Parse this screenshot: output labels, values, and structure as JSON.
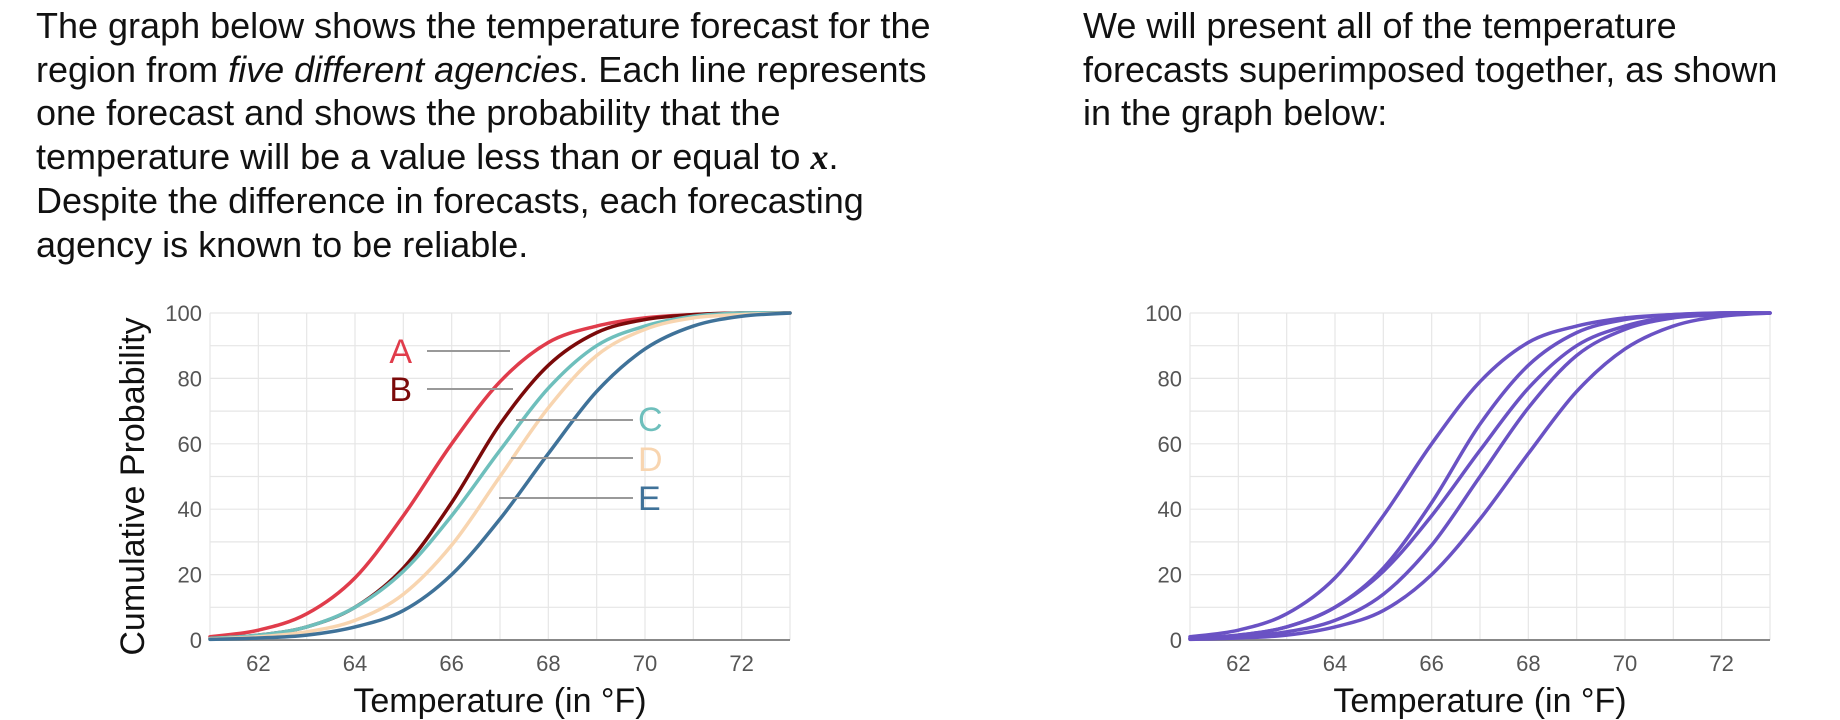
{
  "text": {
    "left": {
      "p1": "The graph below shows the temperature forecast for the region from ",
      "emph": "five different agencies",
      "p2": ". Each line represents one forecast and shows the probability that the temperature will be a value less than or equal to ",
      "var": "x",
      "p3": ". Despite the difference in forecasts, each forecasting agency is known to be reliable."
    },
    "right": "We will present all of the temperature forecasts superimposed together, as shown in the graph below:"
  },
  "chart_data": [
    {
      "type": "line",
      "xlabel": "Temperature (in °F)",
      "ylabel": "Cumulative Probability",
      "xlim": [
        61,
        73
      ],
      "ylim": [
        0,
        100
      ],
      "xticks": [
        62,
        64,
        66,
        68,
        70,
        72
      ],
      "yticks": [
        0,
        20,
        40,
        60,
        80,
        100
      ],
      "grid": true,
      "series": [
        {
          "name": "A",
          "color": "#e03c4b",
          "x": [
            61,
            62,
            63,
            64,
            65,
            66,
            67,
            68,
            69,
            70,
            71,
            72,
            73
          ],
          "y": [
            1,
            3,
            8,
            19,
            38,
            60,
            79,
            91,
            96,
            98.5,
            99.5,
            100,
            100
          ]
        },
        {
          "name": "B",
          "color": "#7b0a0a",
          "x": [
            61,
            62,
            63,
            64,
            65,
            66,
            67,
            68,
            69,
            70,
            71,
            72,
            73
          ],
          "y": [
            0.5,
            1.5,
            4,
            10,
            22,
            42,
            66,
            84,
            94,
            98,
            99.5,
            100,
            100
          ]
        },
        {
          "name": "C",
          "color": "#6ebfbc",
          "x": [
            61,
            62,
            63,
            64,
            65,
            66,
            67,
            68,
            69,
            70,
            71,
            72,
            73
          ],
          "y": [
            0.5,
            1.5,
            4,
            10,
            21,
            38,
            58,
            77,
            90,
            96,
            99,
            100,
            100
          ]
        },
        {
          "name": "D",
          "color": "#f8d5b0",
          "x": [
            61,
            62,
            63,
            64,
            65,
            66,
            67,
            68,
            69,
            70,
            71,
            72,
            73
          ],
          "y": [
            0.3,
            1,
            2.5,
            6,
            14,
            29,
            50,
            71,
            87,
            95,
            98.5,
            99.5,
            100
          ]
        },
        {
          "name": "E",
          "color": "#3f7299",
          "x": [
            61,
            62,
            63,
            64,
            65,
            66,
            67,
            68,
            69,
            70,
            71,
            72,
            73
          ],
          "y": [
            0.2,
            0.6,
            1.5,
            4,
            9,
            20,
            37,
            57,
            76,
            89,
            96,
            99,
            100
          ]
        }
      ]
    },
    {
      "type": "line",
      "xlabel": "Temperature (in °F)",
      "ylabel": "",
      "xlim": [
        61,
        73
      ],
      "ylim": [
        0,
        100
      ],
      "xticks": [
        62,
        64,
        66,
        68,
        70,
        72
      ],
      "yticks": [
        0,
        20,
        40,
        60,
        80,
        100
      ],
      "grid": true,
      "color": "#6a52c4",
      "series": [
        {
          "x": [
            61,
            62,
            63,
            64,
            65,
            66,
            67,
            68,
            69,
            70,
            71,
            72,
            73
          ],
          "y": [
            1,
            3,
            8,
            19,
            38,
            60,
            79,
            91,
            96,
            98.5,
            99.5,
            100,
            100
          ]
        },
        {
          "x": [
            61,
            62,
            63,
            64,
            65,
            66,
            67,
            68,
            69,
            70,
            71,
            72,
            73
          ],
          "y": [
            0.5,
            1.5,
            4,
            10,
            22,
            42,
            66,
            84,
            94,
            98,
            99.5,
            100,
            100
          ]
        },
        {
          "x": [
            61,
            62,
            63,
            64,
            65,
            66,
            67,
            68,
            69,
            70,
            71,
            72,
            73
          ],
          "y": [
            0.5,
            1.5,
            4,
            10,
            21,
            38,
            58,
            77,
            90,
            96,
            99,
            100,
            100
          ]
        },
        {
          "x": [
            61,
            62,
            63,
            64,
            65,
            66,
            67,
            68,
            69,
            70,
            71,
            72,
            73
          ],
          "y": [
            0.3,
            1,
            2.5,
            6,
            14,
            29,
            50,
            71,
            87,
            95,
            98.5,
            99.5,
            100
          ]
        },
        {
          "x": [
            61,
            62,
            63,
            64,
            65,
            66,
            67,
            68,
            69,
            70,
            71,
            72,
            73
          ],
          "y": [
            0.2,
            0.6,
            1.5,
            4,
            9,
            20,
            37,
            57,
            76,
            89,
            96,
            99,
            100
          ]
        }
      ]
    }
  ]
}
